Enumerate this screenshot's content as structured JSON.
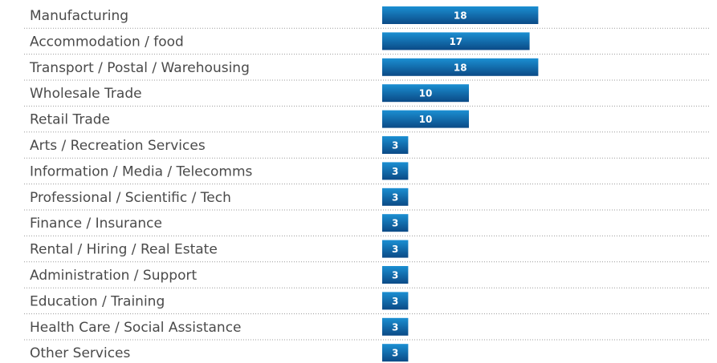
{
  "chart_data": {
    "type": "bar",
    "orientation": "horizontal",
    "categories": [
      "Manufacturing",
      "Accommodation / food",
      "Transport / Postal / Warehousing",
      "Wholesale Trade",
      "Retail Trade",
      "Arts / Recreation Services",
      "Information / Media / Telecomms",
      "Professional / Scientific / Tech",
      "Finance / Insurance",
      "Rental / Hiring / Real Estate",
      "Administration / Support",
      "Education / Training",
      "Health Care / Social Assistance",
      "Other Services"
    ],
    "values": [
      18,
      17,
      18,
      10,
      10,
      3,
      3,
      3,
      3,
      3,
      3,
      3,
      3,
      3
    ],
    "color": "#1b8fd2"
  }
}
